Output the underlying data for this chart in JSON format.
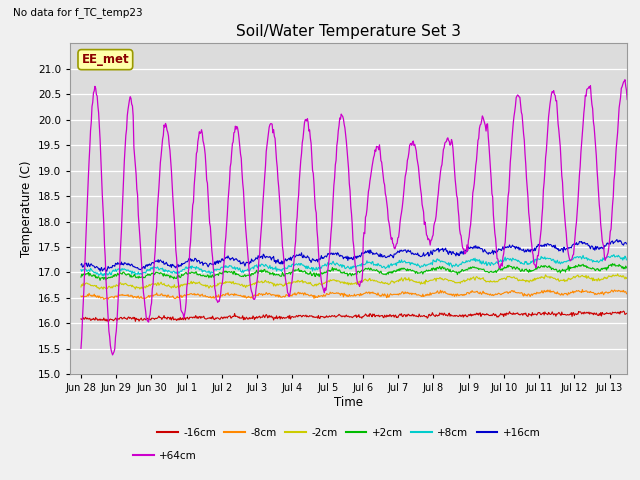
{
  "title": "Soil/Water Temperature Set 3",
  "subtitle": "No data for f_TC_temp23",
  "ylabel": "Temperature (C)",
  "xlabel": "Time",
  "annotation": "EE_met",
  "ylim": [
    15.0,
    21.5
  ],
  "yticks": [
    15.0,
    15.5,
    16.0,
    16.5,
    17.0,
    17.5,
    18.0,
    18.5,
    19.0,
    19.5,
    20.0,
    20.5,
    21.0
  ],
  "bg_color": "#dcdcdc",
  "fig_bg_color": "#f0f0f0",
  "series_colors": {
    "-16cm": "#cc0000",
    "-8cm": "#ff8800",
    "-2cm": "#cccc00",
    "+2cm": "#00bb00",
    "+8cm": "#00cccc",
    "+16cm": "#0000cc",
    "+64cm": "#cc00cc"
  }
}
